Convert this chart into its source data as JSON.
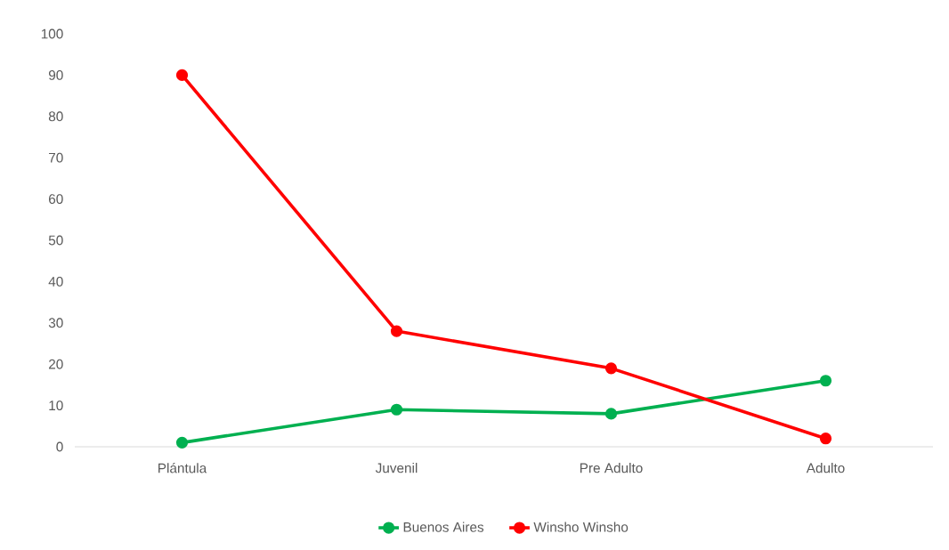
{
  "chart_data": {
    "type": "line",
    "categories": [
      "Plántula",
      "Juvenil",
      "Pre Adulto",
      "Adulto"
    ],
    "series": [
      {
        "name": "Buenos Aires",
        "color": "#00b050",
        "values": [
          1,
          9,
          8,
          16
        ]
      },
      {
        "name": "Winsho Winsho",
        "color": "#ff0000",
        "values": [
          90,
          28,
          19,
          2
        ]
      }
    ],
    "ylim": [
      0,
      100
    ],
    "yticks": [
      0,
      10,
      20,
      30,
      40,
      50,
      60,
      70,
      80,
      90,
      100
    ],
    "legend": "bottom",
    "marker": "circle",
    "line_style": "solid"
  }
}
